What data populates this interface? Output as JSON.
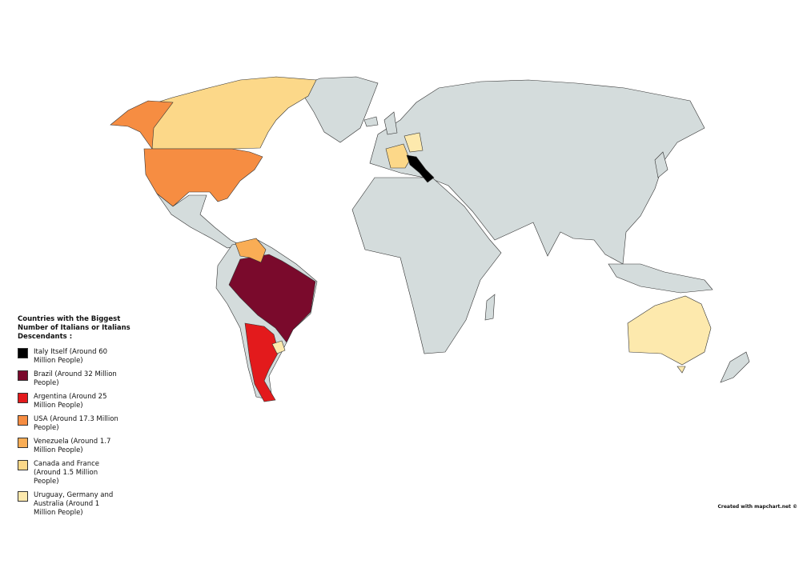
{
  "legend": {
    "title": "Countries with the Biggest Number of Italians or Italians Descendants :",
    "items": [
      {
        "label": "Italy Itself (Around 60 Million People)",
        "color": "#000000"
      },
      {
        "label": "Brazil (Around 32 Million People)",
        "color": "#7a0a2c"
      },
      {
        "label": "Argentina (Around 25 Million People)",
        "color": "#e31a1c"
      },
      {
        "label": "USA (Around 17.3 Million People)",
        "color": "#f68d42"
      },
      {
        "label": "Venezuela (Around 1.7 Million People)",
        "color": "#f9ad55"
      },
      {
        "label": "Canada and France (Around 1.5 Million People)",
        "color": "#fcd889"
      },
      {
        "label": "Uruguay, Germany and Australia (Around 1 Million People)",
        "color": "#fde9ad"
      }
    ]
  },
  "credit": "Created with mapchart.net ©"
}
